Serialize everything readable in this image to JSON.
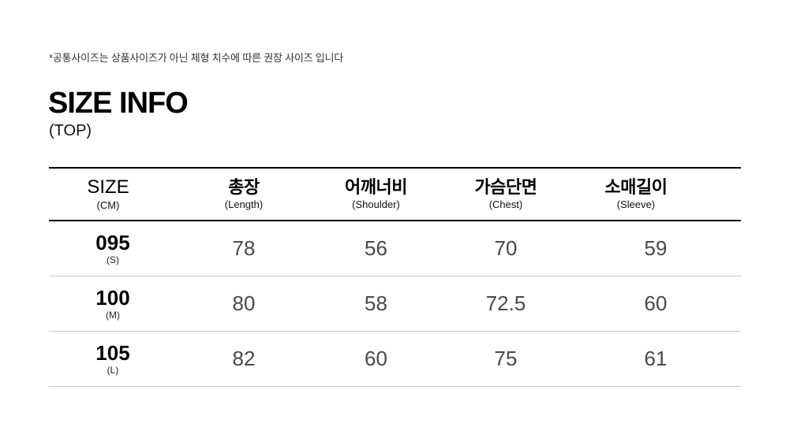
{
  "note": "*공통사이즈는 상품사이즈가 아닌 체형 치수에 따른 권장 사이즈 입니다",
  "heading": {
    "title": "SIZE INFO",
    "subtitle": "(TOP)"
  },
  "table": {
    "columns": [
      {
        "label": "SIZE",
        "sublabel": "(CM)"
      },
      {
        "label": "총장",
        "sublabel": "(Length)"
      },
      {
        "label": "어깨너비",
        "sublabel": "(Shoulder)"
      },
      {
        "label": "가슴단면",
        "sublabel": "(Chest)"
      },
      {
        "label": "소매길이",
        "sublabel": "(Sleeve)"
      }
    ],
    "rows": [
      {
        "size": "095",
        "size_sub": "(S)",
        "values": [
          "78",
          "56",
          "70",
          "59"
        ]
      },
      {
        "size": "100",
        "size_sub": "(M)",
        "values": [
          "80",
          "58",
          "72.5",
          "60"
        ]
      },
      {
        "size": "105",
        "size_sub": "(L)",
        "values": [
          "82",
          "60",
          "75",
          "61"
        ]
      }
    ]
  },
  "colors": {
    "divider_strong": "#000000",
    "divider_light": "#c8c8c8",
    "text": "#000000",
    "value_text": "#494949"
  }
}
